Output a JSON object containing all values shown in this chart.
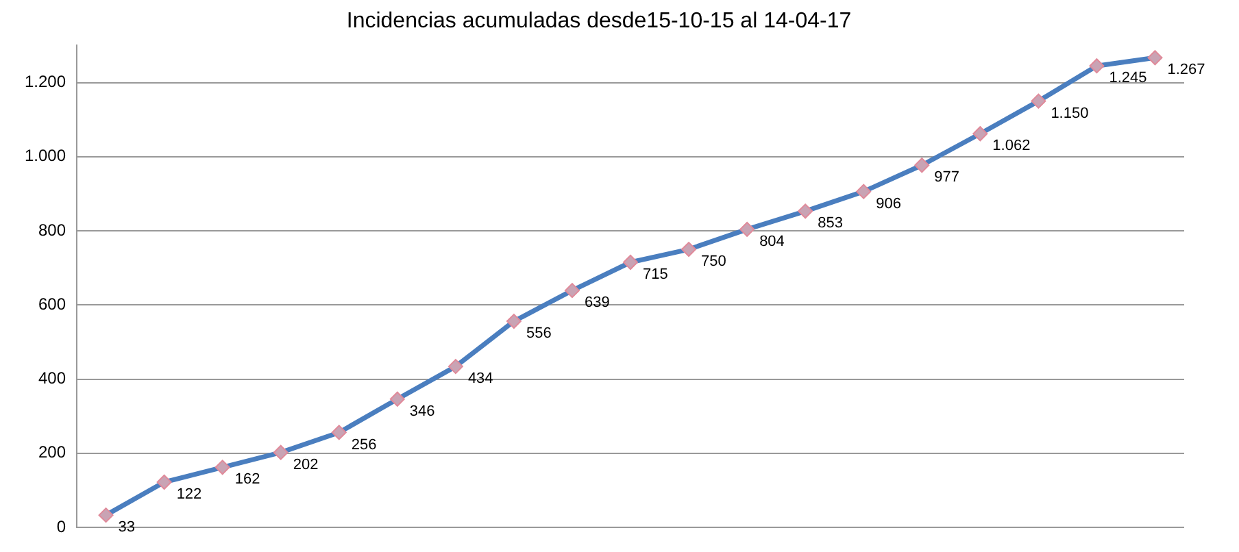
{
  "chart_data": {
    "type": "line",
    "title": "Incidencias acumuladas desde15-10-15 al 14-04-17",
    "categories": [
      null,
      null,
      null,
      null,
      null,
      null,
      null,
      null,
      null,
      null,
      null,
      null,
      null,
      null,
      null,
      null,
      null,
      null,
      null
    ],
    "series": [
      {
        "color": "#4a7ebf",
        "values": [
          33,
          122,
          162,
          202,
          256,
          346,
          434,
          556,
          639,
          715,
          750,
          804,
          853,
          906,
          977,
          1062,
          1150,
          1245,
          1267
        ],
        "value_labels": [
          "33",
          "122",
          "162",
          "202",
          "256",
          "346",
          "434",
          "556",
          "639",
          "715",
          "750",
          "804",
          "853",
          "906",
          "977",
          "1.062",
          "1.150",
          "1.245",
          "1.267"
        ]
      }
    ],
    "ylim": [
      0,
      1300
    ],
    "yticks": [
      0,
      200,
      400,
      600,
      800,
      {
        "value": 1000,
        "label": "1.000"
      },
      {
        "value": 1200,
        "label": "1.200"
      }
    ],
    "grid": "y",
    "legend": false,
    "marker": "diamond",
    "line_style": "solid",
    "tick_labels": "y"
  }
}
